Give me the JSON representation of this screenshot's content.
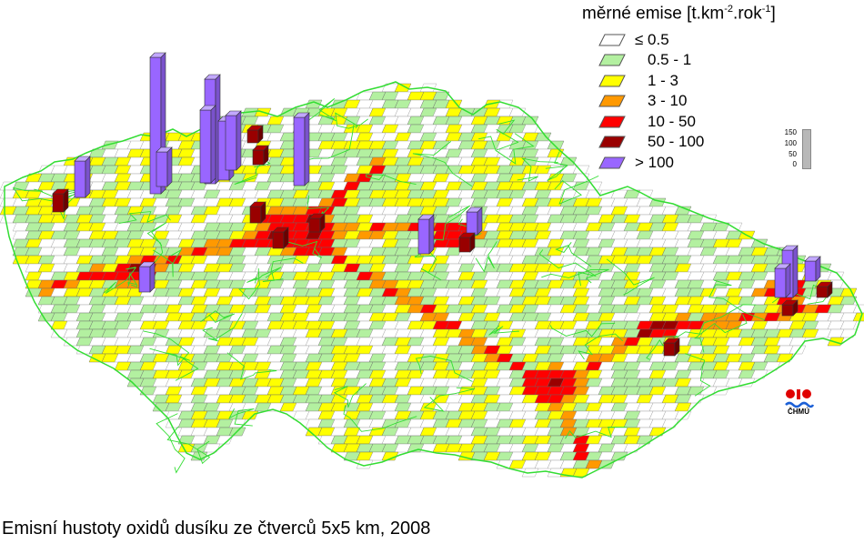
{
  "legend": {
    "title_main": "měrné emise [t.km",
    "title_exp1": "-2",
    "title_mid": ".rok",
    "title_exp2": "-1",
    "title_end": "]",
    "classes": [
      {
        "label": "≤ 0.5",
        "color": "#ffffff"
      },
      {
        "label": "0.5 - 1",
        "color": "#b3f0a0"
      },
      {
        "label": "1 - 3",
        "color": "#ffff00"
      },
      {
        "label": "3 - 10",
        "color": "#ff9900"
      },
      {
        "label": "10 - 50",
        "color": "#ff0000"
      },
      {
        "label": "50 - 100",
        "color": "#990000"
      },
      {
        "label": "> 100",
        "color": "#9966ff"
      }
    ]
  },
  "scale": {
    "ticks": [
      "150",
      "100",
      "50",
      "0"
    ]
  },
  "logo": {
    "text": "ČHMÚ"
  },
  "caption": "Emisní hustoty oxidů dusíku ze čtverců 5x5 km, 2008",
  "colors": {
    "border": "#33dd33",
    "edge": "#555555"
  }
}
